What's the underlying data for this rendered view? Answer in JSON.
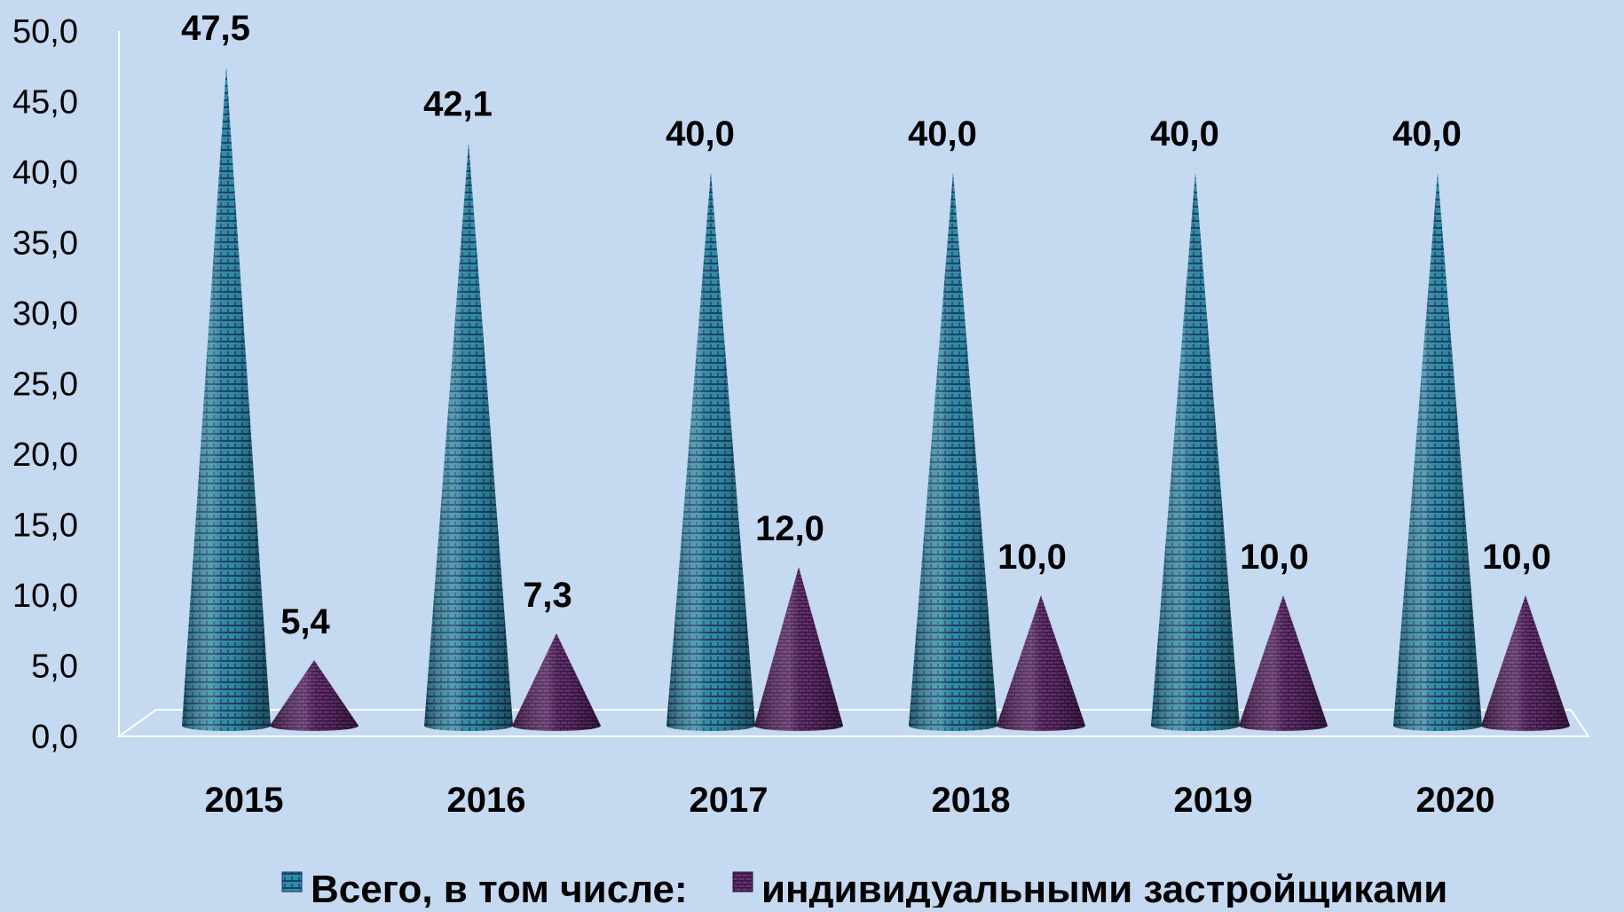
{
  "chart_data": {
    "type": "bar",
    "shape": "cone-3d",
    "categories": [
      "2015",
      "2016",
      "2017",
      "2018",
      "2019",
      "2020"
    ],
    "category_labels": [
      "2015",
      "2016",
      "2017",
      "2018",
      "2019",
      "2020"
    ],
    "series": [
      {
        "name": "Всего, в том числе:",
        "values": [
          47.5,
          42.1,
          40.0,
          40.0,
          40.0,
          40.0
        ],
        "labels": [
          "47,5",
          "42,1",
          "40,0",
          "40,0",
          "40,0",
          "40,0"
        ],
        "color": "#2f8fa0",
        "pattern_color": "#1b2f6e"
      },
      {
        "name": "индивидуальными застройщиками",
        "values": [
          5.4,
          7.3,
          12.0,
          10.0,
          10.0,
          10.0
        ],
        "labels": [
          "5,4",
          "7,3",
          "12,0",
          "10,0",
          "10,0",
          "10,0"
        ],
        "color": "#6b2f6e",
        "pattern_color": "#2b1540"
      }
    ],
    "ylim": [
      0,
      50
    ],
    "y_ticks": [
      0,
      5,
      10,
      15,
      20,
      25,
      30,
      35,
      40,
      45,
      50
    ],
    "y_tick_labels": [
      "0,0",
      "5,0",
      "10,0",
      "15,0",
      "20,0",
      "25,0",
      "30,0",
      "35,0",
      "40,0",
      "45,0",
      "50,0"
    ],
    "title": "",
    "xlabel": "",
    "ylabel": "",
    "grid": false,
    "legend_position": "bottom",
    "background": "#c5d9f1"
  }
}
